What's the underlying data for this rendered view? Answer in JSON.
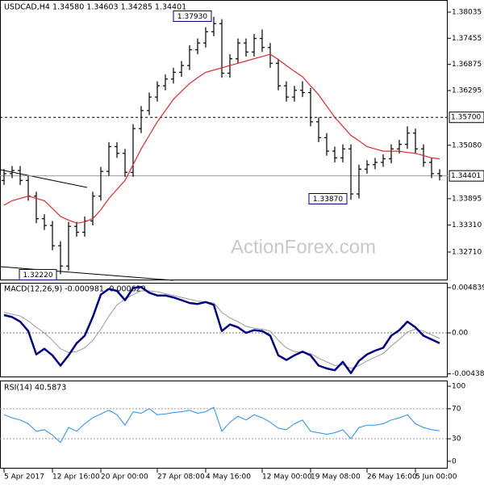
{
  "chart_data": [
    {
      "type": "ohlc",
      "title": "USDCAD,H4 1.34580 1.34603 1.34285 1.34401",
      "categories": [
        "5 Apr 2017",
        null,
        null,
        null,
        null,
        null,
        "12 Apr 16:00",
        null,
        null,
        null,
        null,
        null,
        "20 Apr 00:00",
        null,
        null,
        null,
        null,
        null,
        null,
        "27 Apr 08:00",
        null,
        null,
        null,
        null,
        null,
        "4 May 16:00",
        null,
        null,
        null,
        null,
        null,
        null,
        "12 May 00:00",
        null,
        null,
        null,
        null,
        null,
        "19 May 08:00",
        null,
        null,
        null,
        null,
        null,
        null,
        "26 May 16:00",
        null,
        null,
        null,
        null,
        null,
        "5 Jun 00:00",
        null,
        null,
        null
      ],
      "open": [
        1.343,
        1.3445,
        1.3452,
        1.343,
        1.3395,
        1.3345,
        1.333,
        1.3285,
        1.324,
        1.3328,
        1.3315,
        1.334,
        1.3395,
        1.345,
        1.3505,
        1.349,
        1.3448,
        1.3545,
        1.3585,
        1.3615,
        1.364,
        1.3655,
        1.367,
        1.3685,
        1.372,
        1.3735,
        1.376,
        1.3778,
        1.3668,
        1.37,
        1.3735,
        1.3715,
        1.3745,
        1.3725,
        1.369,
        1.364,
        1.3615,
        1.363,
        1.3625,
        1.356,
        1.3525,
        1.3495,
        1.348,
        1.35,
        1.34,
        1.3455,
        1.3465,
        1.347,
        1.3478,
        1.35,
        1.351,
        1.3535,
        1.35,
        1.347,
        1.3445
      ],
      "high": [
        1.3455,
        1.3462,
        1.3462,
        1.344,
        1.3405,
        1.3355,
        1.334,
        1.3295,
        1.3338,
        1.3338,
        1.335,
        1.3405,
        1.346,
        1.3515,
        1.3515,
        1.35,
        1.3555,
        1.3595,
        1.3625,
        1.365,
        1.3665,
        1.368,
        1.3695,
        1.373,
        1.3745,
        1.377,
        1.3793,
        1.3788,
        1.371,
        1.3745,
        1.3745,
        1.3755,
        1.3765,
        1.3735,
        1.37,
        1.365,
        1.364,
        1.365,
        1.3635,
        1.357,
        1.3535,
        1.3505,
        1.351,
        1.351,
        1.3465,
        1.3475,
        1.348,
        1.3488,
        1.351,
        1.352,
        1.355,
        1.3545,
        1.351,
        1.348,
        1.3455
      ],
      "low": [
        1.342,
        1.3435,
        1.342,
        1.3385,
        1.3335,
        1.332,
        1.3275,
        1.3222,
        1.323,
        1.3305,
        1.3305,
        1.333,
        1.3385,
        1.344,
        1.348,
        1.3438,
        1.3438,
        1.3535,
        1.3575,
        1.3605,
        1.363,
        1.3645,
        1.366,
        1.3675,
        1.371,
        1.3725,
        1.375,
        1.3658,
        1.3658,
        1.369,
        1.3705,
        1.3705,
        1.3715,
        1.368,
        1.363,
        1.3605,
        1.3605,
        1.3615,
        1.355,
        1.3515,
        1.3485,
        1.347,
        1.347,
        1.3387,
        1.339,
        1.3445,
        1.3455,
        1.346,
        1.3468,
        1.349,
        1.35,
        1.349,
        1.346,
        1.3435,
        1.343
      ],
      "close": [
        1.3445,
        1.3452,
        1.343,
        1.3395,
        1.3345,
        1.333,
        1.3285,
        1.324,
        1.3328,
        1.3315,
        1.334,
        1.3395,
        1.345,
        1.3505,
        1.349,
        1.3448,
        1.3545,
        1.3585,
        1.3615,
        1.364,
        1.3655,
        1.367,
        1.3685,
        1.372,
        1.3735,
        1.376,
        1.3778,
        1.3668,
        1.37,
        1.3735,
        1.3715,
        1.3745,
        1.3725,
        1.369,
        1.364,
        1.3615,
        1.363,
        1.3625,
        1.356,
        1.3525,
        1.3495,
        1.348,
        1.35,
        1.34,
        1.3455,
        1.3465,
        1.347,
        1.3478,
        1.35,
        1.351,
        1.3535,
        1.35,
        1.347,
        1.3445,
        1.344
      ],
      "color": "#000000",
      "ma": {
        "color": "#e8262b",
        "values": [
          1.3375,
          1.3385,
          1.339,
          1.3395,
          1.339,
          1.3385,
          1.3368,
          1.335,
          1.3342,
          1.3335,
          1.3338,
          1.3345,
          1.3365,
          1.339,
          1.341,
          1.343,
          1.3465,
          1.35,
          1.353,
          1.356,
          1.3585,
          1.361,
          1.3628,
          1.3645,
          1.3658,
          1.367,
          1.3675,
          1.368,
          1.3685,
          1.369,
          1.3695,
          1.37,
          1.3705,
          1.371,
          1.3698,
          1.3685,
          1.3672,
          1.366,
          1.364,
          1.362,
          1.3595,
          1.357,
          1.355,
          1.353,
          1.3518,
          1.3505,
          1.35,
          1.3495,
          1.3495,
          1.3495,
          1.3492,
          1.349,
          1.3485,
          1.348,
          1.3478
        ]
      },
      "ylim": [
        1.32082,
        1.38304
      ],
      "yticks": [
        1.38035,
        1.37455,
        1.36875,
        1.36295,
        {
          "value": 1.3508,
          "label": "1.35080"
        },
        1.33895,
        {
          "value": 1.3331,
          "label": "1.33310"
        },
        {
          "value": 1.3271,
          "label": "1.32710"
        }
      ],
      "levels": [
        {
          "value": 1.357,
          "label": "1.35700",
          "style": "dashed"
        },
        {
          "value": 1.34401,
          "label": "1.34401",
          "style": "solid"
        }
      ],
      "annotations": [
        "1.37930",
        "1.32220",
        "1.33870"
      ],
      "watermark": "ActionForex.com"
    },
    {
      "type": "line",
      "title": "MACD(12,26,9) -0.000981 -0.000629",
      "series": [
        {
          "color": "#00008b",
          "values": [
            0.0019,
            0.0017,
            0.0012,
            0.0002,
            -0.0023,
            -0.0017,
            -0.0024,
            -0.0035,
            -0.0024,
            -0.0011,
            -0.0003,
            0.0017,
            0.0041,
            0.0047,
            0.0045,
            0.0035,
            0.0048,
            0.0049,
            0.0043,
            0.004,
            0.004,
            0.0038,
            0.0035,
            0.0032,
            0.0031,
            0.0033,
            0.003,
            0.0002,
            0.0009,
            0.0006,
            0.0,
            0.0003,
            0.0002,
            -0.0003,
            -0.0024,
            -0.0029,
            -0.0024,
            -0.002,
            -0.0024,
            -0.0035,
            -0.0038,
            -0.004,
            -0.0031,
            -0.0043,
            -0.003,
            -0.0023,
            -0.0019,
            -0.0016,
            -0.0003,
            0.0003,
            0.0012,
            0.0006,
            -0.0003,
            -0.0007,
            -0.0011
          ]
        },
        {
          "color": "#9a9a9a",
          "values": [
            0.0022,
            0.002,
            0.0018,
            0.0013,
            0.0006,
            0.0,
            -0.0008,
            -0.0017,
            -0.0021,
            -0.002,
            -0.0016,
            -0.0008,
            0.0004,
            0.0018,
            0.003,
            0.0036,
            0.0041,
            0.0045,
            0.0045,
            0.0044,
            0.0042,
            0.004,
            0.0038,
            0.0036,
            0.0034,
            0.0033,
            0.0032,
            0.0022,
            0.0016,
            0.0012,
            0.0007,
            0.0005,
            0.0004,
            0.0002,
            -0.0008,
            -0.0016,
            -0.002,
            -0.0021,
            -0.0022,
            -0.0027,
            -0.0031,
            -0.0035,
            -0.0034,
            -0.0038,
            -0.0035,
            -0.003,
            -0.0026,
            -0.0022,
            -0.0014,
            -0.0007,
            0.0001,
            0.0004,
            0.0002,
            -0.0002,
            -0.0006
          ]
        }
      ],
      "ylim": [
        -0.00475,
        0.00536
      ],
      "yticks": [
        0.004839,
        {
          "value": 0,
          "label": "0.00"
        },
        -0.004381
      ],
      "zero_line": true
    },
    {
      "type": "line",
      "title": "RSI(14) 40.5873",
      "series": [
        {
          "color": "#1e90ff",
          "values": [
            62,
            58,
            55,
            50,
            40,
            42,
            35,
            25,
            45,
            40,
            50,
            58,
            63,
            68,
            62,
            48,
            66,
            64,
            70,
            62,
            63,
            65,
            66,
            68,
            64,
            66,
            72,
            40,
            52,
            60,
            55,
            62,
            58,
            52,
            44,
            42,
            50,
            55,
            40,
            38,
            36,
            38,
            42,
            30,
            45,
            48,
            48,
            50,
            55,
            58,
            62,
            50,
            45,
            42,
            40.5873
          ]
        }
      ],
      "ylim": [
        -9.8,
        107.6
      ],
      "yticks": [
        100,
        70,
        30,
        0
      ],
      "guide_lines": [
        70,
        30
      ]
    }
  ]
}
